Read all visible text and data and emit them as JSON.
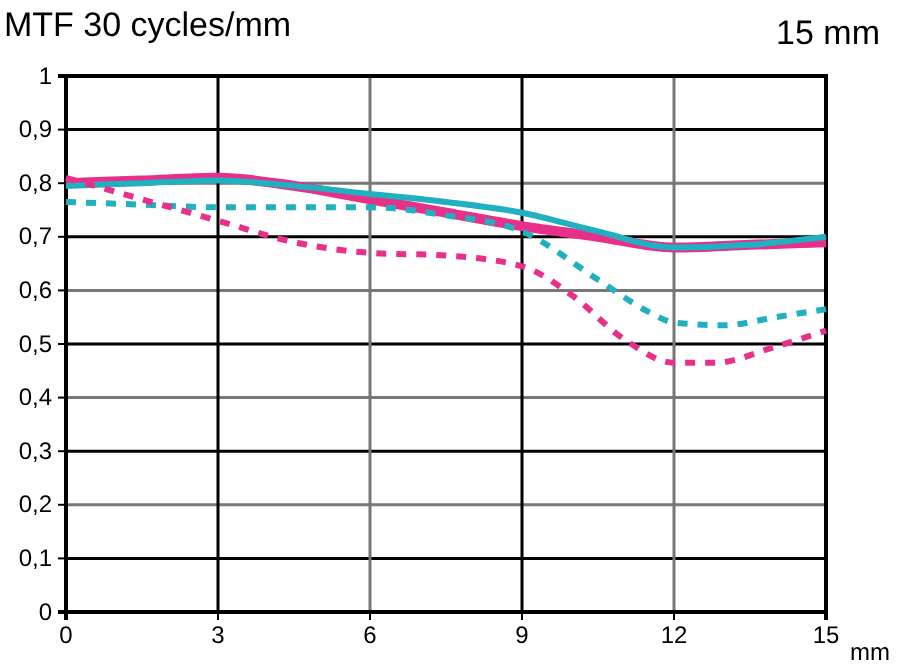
{
  "chart_data": {
    "type": "line",
    "title": "MTF 30 cycles/mm",
    "subtitle": "15 mm",
    "xlabel": "mm",
    "xlim": [
      0,
      15
    ],
    "xticks": [
      0,
      3,
      6,
      9,
      12,
      15
    ],
    "ylim": [
      0,
      1
    ],
    "yticks": [
      0,
      {
        "value": 0.1,
        "label": "0,1"
      },
      {
        "value": 0.2,
        "label": "0,2"
      },
      {
        "value": 0.3,
        "label": "0,3"
      },
      {
        "value": 0.4,
        "label": "0,4"
      },
      {
        "value": 0.5,
        "label": "0,5"
      },
      {
        "value": 0.6,
        "label": "0,6"
      },
      {
        "value": 0.7,
        "label": "0,7"
      },
      {
        "value": 0.8,
        "label": "0,8"
      },
      {
        "value": 0.9,
        "label": "0,9"
      },
      1
    ],
    "grid": true,
    "marker": "none",
    "series": [
      {
        "color": "#e8308a",
        "line_style": "solid",
        "x": [
          0,
          1.5,
          3,
          4.5,
          6,
          7.5,
          9,
          10.5,
          12,
          13.5,
          15
        ],
        "values": [
          0.8,
          0.805,
          0.81,
          0.795,
          0.77,
          0.745,
          0.72,
          0.7,
          0.68,
          0.685,
          0.69
        ]
      },
      {
        "color": "#20b0c0",
        "line_style": "solid",
        "x": [
          0,
          1.5,
          3,
          4.5,
          6,
          7.5,
          9,
          10.5,
          12,
          13.5,
          15
        ],
        "values": [
          0.795,
          0.8,
          0.805,
          0.795,
          0.78,
          0.765,
          0.745,
          0.71,
          0.68,
          0.685,
          0.7
        ]
      },
      {
        "color": "#20b0c0",
        "line_style": "dashed",
        "x": [
          0,
          1.5,
          3,
          4.5,
          6,
          7.5,
          9,
          10.5,
          11.5,
          12,
          13,
          14,
          15
        ],
        "values": [
          0.765,
          0.76,
          0.755,
          0.755,
          0.755,
          0.74,
          0.71,
          0.62,
          0.56,
          0.54,
          0.535,
          0.55,
          0.565
        ]
      },
      {
        "color": "#e8308a",
        "line_style": "dashed",
        "x": [
          0,
          1.5,
          3,
          4.5,
          6,
          7.5,
          9,
          10,
          11,
          12,
          12.8,
          14,
          15
        ],
        "values": [
          0.81,
          0.77,
          0.73,
          0.69,
          0.67,
          0.665,
          0.645,
          0.59,
          0.51,
          0.465,
          0.465,
          0.495,
          0.525
        ]
      }
    ]
  }
}
